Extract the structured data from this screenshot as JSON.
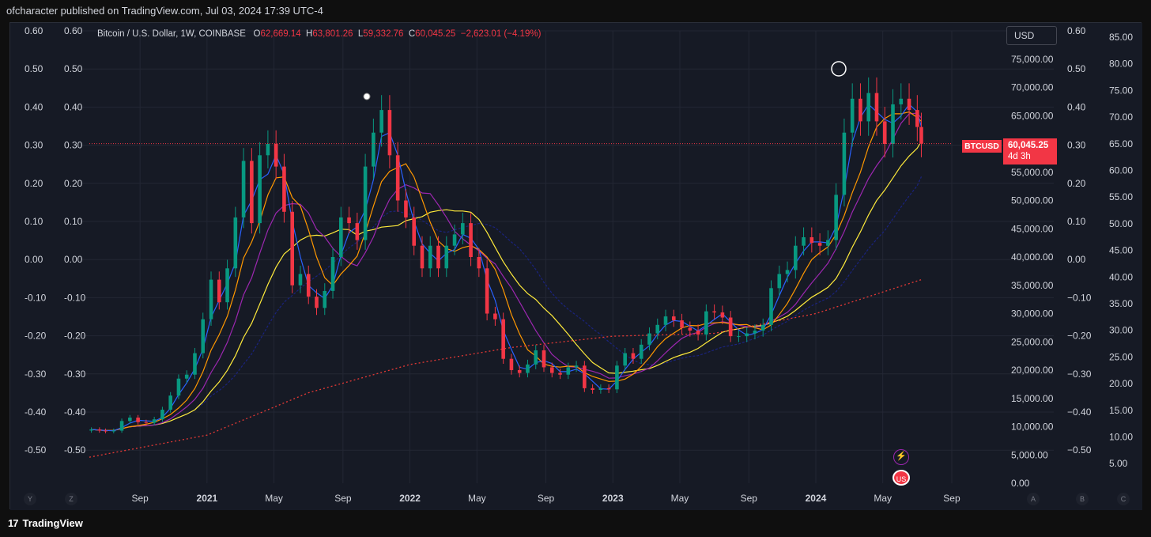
{
  "header": {
    "published": "ofcharacter published on TradingView.com, Jul 03, 2024 17:39 UTC-4"
  },
  "brand": {
    "name": "TradingView",
    "logo_icon": "tv-logo-icon"
  },
  "legend": {
    "title": "Bitcoin / U.S. Dollar, 1W, COINBASE",
    "o_label": "O",
    "o_value": "62,669.14",
    "h_label": "H",
    "h_value": "63,801.26",
    "l_label": "L",
    "l_value": "59,332.76",
    "c_label": "C",
    "c_value": "60,045.25",
    "change": "−2,623.01 (−4.19%)"
  },
  "currency": "USD",
  "last_price": {
    "symbol": "BTCUSD",
    "value": "60,045.25",
    "countdown": "4d 3h"
  },
  "axis_buttons": {
    "y": "Y",
    "z": "Z",
    "a": "A",
    "b": "B",
    "c": "C"
  },
  "colors": {
    "bg": "#161a25",
    "grid": "#232734",
    "up": "#089981",
    "down": "#f23645",
    "ma1": "#2962ff",
    "ma2": "#ff9800",
    "ma3": "#9c27b0",
    "ma4": "#ffeb3b",
    "ma5": "#1a237e",
    "ma200": "#e53935",
    "axis_text": "#d1d4dc"
  },
  "chart_data": {
    "type": "candlestick",
    "title": "Bitcoin / U.S. Dollar, 1W, COINBASE",
    "y_price_range": [
      0,
      80000
    ],
    "y_price_ticks": [
      "75,000.00",
      "70,000.00",
      "65,000.00",
      "60,000.00",
      "55,000.00",
      "50,000.00",
      "45,000.00",
      "40,000.00",
      "35,000.00",
      "30,000.00",
      "25,000.00",
      "20,000.00",
      "15,000.00",
      "10,000.00",
      "5,000.00",
      "0.00"
    ],
    "y_osc_ticks": [
      "0.60",
      "0.50",
      "0.40",
      "0.30",
      "0.20",
      "0.10",
      "0.00",
      "-0.10",
      "-0.20",
      "-0.30",
      "-0.40",
      "-0.50"
    ],
    "y_osc2_ticks": [
      "0.60",
      "0.50",
      "0.40",
      "0.30",
      "0.20",
      "0.10",
      "0.00",
      "−0.10",
      "−0.20",
      "−0.30",
      "−0.40",
      "−0.50"
    ],
    "y_far_right_ticks": [
      "85.00",
      "80.00",
      "75.00",
      "70.00",
      "65.00",
      "60.00",
      "55.00",
      "50.00",
      "45.00",
      "40.00",
      "35.00",
      "30.00",
      "25.00",
      "20.00",
      "15.00",
      "10.00",
      "5.00"
    ],
    "x_ticks": [
      "Sep",
      "2021",
      "May",
      "Sep",
      "2022",
      "May",
      "Sep",
      "2023",
      "May",
      "Sep",
      "2024",
      "May",
      "Sep"
    ],
    "x_tick_months": [
      2020.67,
      2021.0,
      2021.33,
      2021.67,
      2022.0,
      2022.33,
      2022.67,
      2023.0,
      2023.33,
      2023.67,
      2024.0,
      2024.33,
      2024.67
    ],
    "x_range": [
      2020.42,
      2024.9
    ],
    "close_series": [
      [
        2020.43,
        9500
      ],
      [
        2020.47,
        9300
      ],
      [
        2020.5,
        9200
      ],
      [
        2020.54,
        9300
      ],
      [
        2020.58,
        11000
      ],
      [
        2020.62,
        11600
      ],
      [
        2020.66,
        10800
      ],
      [
        2020.7,
        10700
      ],
      [
        2020.74,
        11300
      ],
      [
        2020.78,
        13000
      ],
      [
        2020.82,
        15500
      ],
      [
        2020.86,
        18500
      ],
      [
        2020.9,
        19200
      ],
      [
        2020.94,
        23000
      ],
      [
        2020.98,
        29000
      ],
      [
        2021.02,
        36000
      ],
      [
        2021.06,
        32000
      ],
      [
        2021.1,
        38000
      ],
      [
        2021.14,
        47000
      ],
      [
        2021.18,
        57000
      ],
      [
        2021.22,
        46000
      ],
      [
        2021.26,
        58000
      ],
      [
        2021.3,
        60000
      ],
      [
        2021.34,
        56000
      ],
      [
        2021.38,
        48000
      ],
      [
        2021.42,
        35000
      ],
      [
        2021.46,
        37000
      ],
      [
        2021.5,
        33000
      ],
      [
        2021.54,
        31000
      ],
      [
        2021.58,
        34000
      ],
      [
        2021.62,
        40000
      ],
      [
        2021.66,
        47000
      ],
      [
        2021.7,
        46000
      ],
      [
        2021.74,
        43000
      ],
      [
        2021.78,
        56000
      ],
      [
        2021.82,
        62000
      ],
      [
        2021.86,
        66000
      ],
      [
        2021.9,
        58000
      ],
      [
        2021.94,
        50000
      ],
      [
        2021.98,
        47000
      ],
      [
        2022.02,
        42000
      ],
      [
        2022.06,
        38000
      ],
      [
        2022.1,
        42000
      ],
      [
        2022.14,
        38000
      ],
      [
        2022.18,
        42000
      ],
      [
        2022.22,
        44000
      ],
      [
        2022.26,
        46000
      ],
      [
        2022.3,
        40000
      ],
      [
        2022.34,
        38000
      ],
      [
        2022.38,
        30000
      ],
      [
        2022.42,
        29000
      ],
      [
        2022.46,
        22000
      ],
      [
        2022.5,
        20000
      ],
      [
        2022.54,
        19500
      ],
      [
        2022.58,
        21000
      ],
      [
        2022.62,
        23500
      ],
      [
        2022.66,
        20500
      ],
      [
        2022.7,
        19500
      ],
      [
        2022.74,
        19200
      ],
      [
        2022.78,
        20500
      ],
      [
        2022.82,
        20800
      ],
      [
        2022.86,
        16800
      ],
      [
        2022.9,
        16500
      ],
      [
        2022.94,
        16800
      ],
      [
        2022.98,
        16600
      ],
      [
        2023.02,
        20800
      ],
      [
        2023.06,
        23000
      ],
      [
        2023.1,
        22000
      ],
      [
        2023.14,
        24500
      ],
      [
        2023.18,
        26500
      ],
      [
        2023.22,
        28000
      ],
      [
        2023.26,
        29500
      ],
      [
        2023.3,
        28800
      ],
      [
        2023.34,
        27500
      ],
      [
        2023.38,
        27000
      ],
      [
        2023.42,
        26300
      ],
      [
        2023.46,
        30400
      ],
      [
        2023.5,
        30200
      ],
      [
        2023.54,
        29300
      ],
      [
        2023.58,
        26000
      ],
      [
        2023.62,
        26000
      ],
      [
        2023.66,
        26500
      ],
      [
        2023.7,
        27000
      ],
      [
        2023.74,
        28000
      ],
      [
        2023.78,
        34500
      ],
      [
        2023.82,
        37000
      ],
      [
        2023.86,
        37700
      ],
      [
        2023.9,
        42000
      ],
      [
        2023.94,
        43500
      ],
      [
        2023.98,
        42500
      ],
      [
        2024.02,
        42000
      ],
      [
        2024.06,
        43000
      ],
      [
        2024.1,
        51000
      ],
      [
        2024.14,
        62000
      ],
      [
        2024.18,
        68000
      ],
      [
        2024.22,
        64000
      ],
      [
        2024.26,
        69000
      ],
      [
        2024.3,
        64000
      ],
      [
        2024.34,
        60000
      ],
      [
        2024.38,
        67000
      ],
      [
        2024.42,
        68000
      ],
      [
        2024.46,
        66000
      ],
      [
        2024.5,
        63000
      ],
      [
        2024.52,
        60045
      ]
    ],
    "series_labels": [
      "Weekly candles",
      "MA fast (blue)",
      "MA (orange)",
      "MA (purple)",
      "MA (yellow)",
      "MA (dark blue)",
      "200W MA (red dotted)"
    ]
  }
}
